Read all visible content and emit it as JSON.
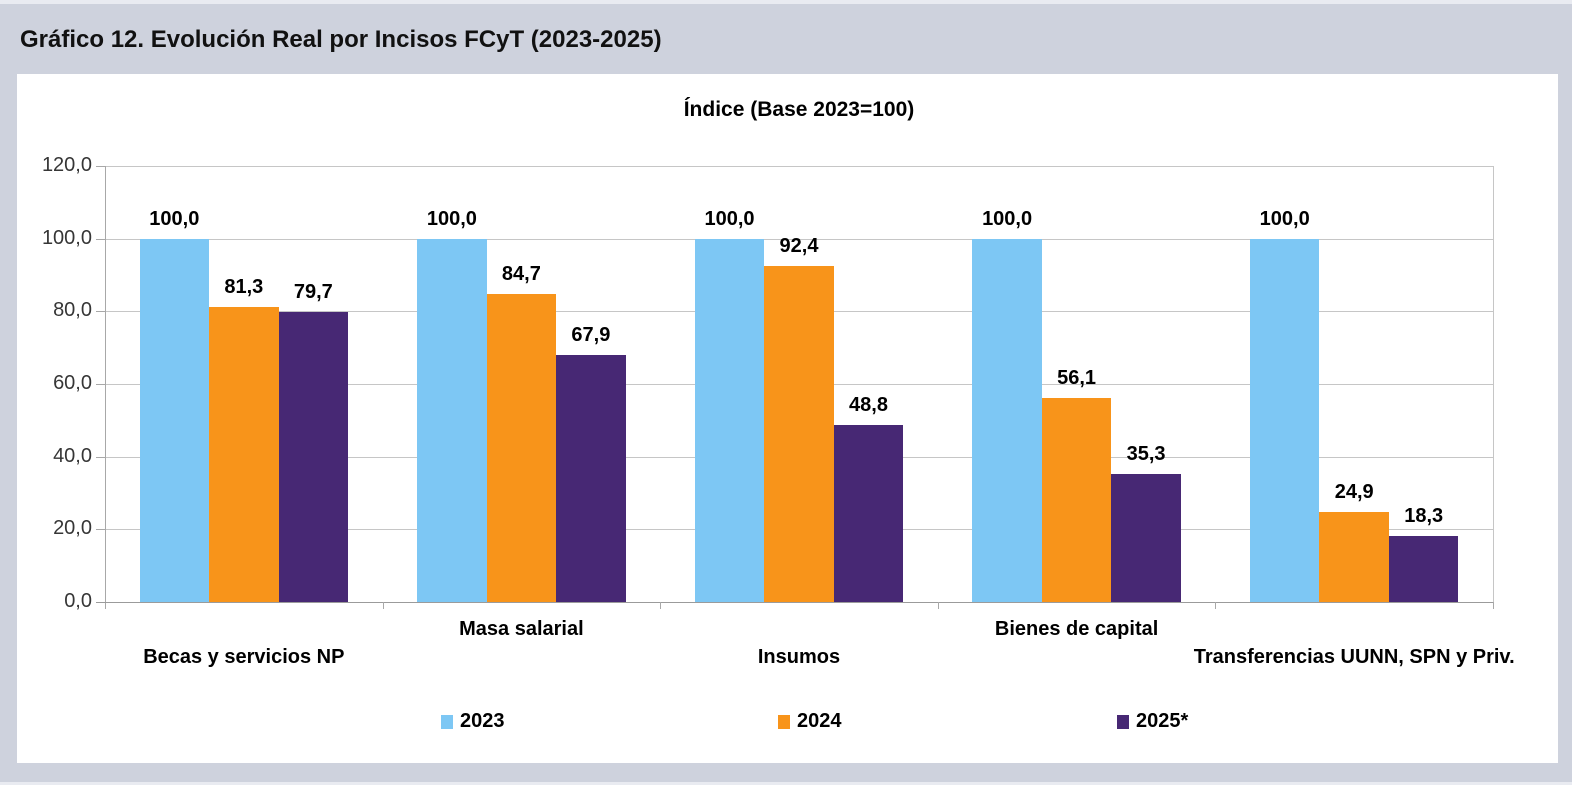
{
  "document": {
    "title": "Gráfico 12. Evolución Real por Incisos FCyT (2023-2025)"
  },
  "chart_data": {
    "type": "bar",
    "title": "Índice (Base 2023=100)",
    "categories": [
      "Becas y servicios NP",
      "Masa salarial",
      "Insumos",
      "Bienes de capital",
      "Transferencias UUNN, SPN y Priv."
    ],
    "series": [
      {
        "name": "2023",
        "color": "#7dc7f4",
        "values": [
          100.0,
          100.0,
          100.0,
          100.0,
          100.0
        ]
      },
      {
        "name": "2024",
        "color": "#f8941a",
        "values": [
          81.3,
          84.7,
          92.4,
          56.1,
          24.9
        ]
      },
      {
        "name": "2025*",
        "color": "#472874",
        "values": [
          79.7,
          67.9,
          48.8,
          35.3,
          18.3
        ]
      }
    ],
    "value_label_format": "comma-decimal-1",
    "y_ticks": [
      "120,0",
      "100,0",
      "80,0",
      "60,0",
      "40,0",
      "20,0",
      "0,0"
    ],
    "ylim": [
      0,
      120
    ],
    "y_step": 20,
    "grid": true,
    "legend_position": "bottom",
    "colors": {
      "background": "#ced2dd",
      "panel": "#ffffff",
      "gridline": "#c6c6c6",
      "axis": "#a8a8a8",
      "text": "#000000"
    }
  }
}
